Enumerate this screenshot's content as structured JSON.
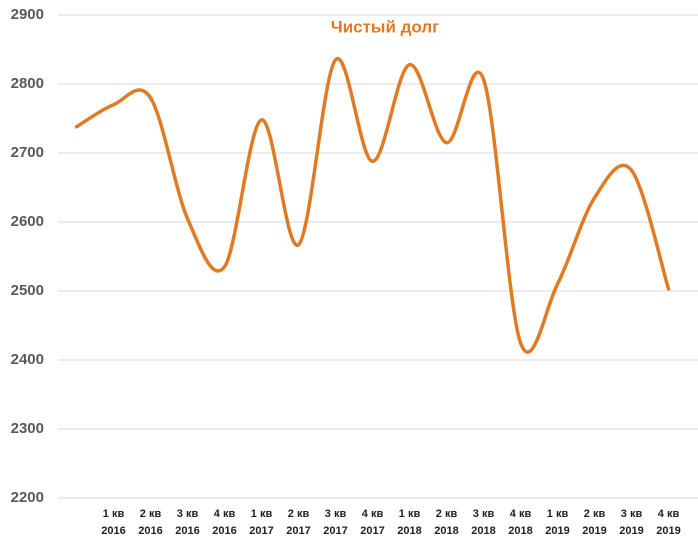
{
  "chart_data": {
    "type": "line",
    "title": "Чистый долг",
    "categories": [
      null,
      "1 кв 2016",
      "2 кв 2016",
      "3 кв 2016",
      "4 кв 2016",
      "1 кв 2017",
      "2 кв 2017",
      "3 кв 2017",
      "4 кв 2017",
      "1 кв 2018",
      "2 кв 2018",
      "3 кв 2018",
      "4 кв 2018",
      "1 кв 2019",
      "2 кв 2019",
      "3 кв 2019",
      "4 кв 2019"
    ],
    "series": [
      {
        "name": "Чистый долг",
        "color": "#e07b24",
        "values": [
          2738,
          2770,
          2780,
          2605,
          2535,
          2748,
          2567,
          2835,
          2688,
          2828,
          2715,
          2807,
          2425,
          2510,
          2635,
          2675,
          2503
        ]
      }
    ],
    "ylim": [
      2200,
      2900
    ],
    "yticks": [
      2200,
      2300,
      2400,
      2500,
      2600,
      2700,
      2800,
      2900
    ],
    "grid": true,
    "smooth": true
  }
}
